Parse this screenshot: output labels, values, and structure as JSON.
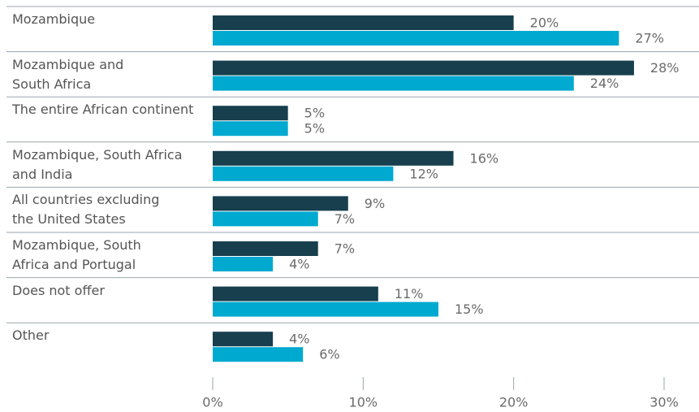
{
  "chart_data": {
    "type": "bar",
    "orientation": "horizontal",
    "categories": [
      "Mozambique",
      "Mozambique and\nSouth Africa",
      "The entire African continent",
      "Mozambique, South Africa\nand India",
      "All countries excluding\nthe United States",
      "Mozambique, South\nAfrica and Portugal",
      "Does not offer",
      "Other"
    ],
    "series": [
      {
        "color": "#173f4d",
        "values": [
          20,
          28,
          5,
          16,
          9,
          7,
          11,
          4
        ],
        "value_labels": [
          "20%",
          "28%",
          "5%",
          "16%",
          "9%",
          "7%",
          "11%",
          "4%"
        ]
      },
      {
        "color": "#00a9d0",
        "values": [
          27,
          24,
          5,
          12,
          7,
          4,
          15,
          6
        ],
        "value_labels": [
          "27%",
          "24%",
          "5%",
          "12%",
          "7%",
          "4%",
          "15%",
          "6%"
        ]
      }
    ],
    "xlim": [
      0,
      30
    ],
    "xticks": [
      {
        "value": 0,
        "label": "0%"
      },
      {
        "value": 10,
        "label": "10%"
      },
      {
        "value": 20,
        "label": "20%"
      },
      {
        "value": 30,
        "label": "30%"
      }
    ]
  }
}
